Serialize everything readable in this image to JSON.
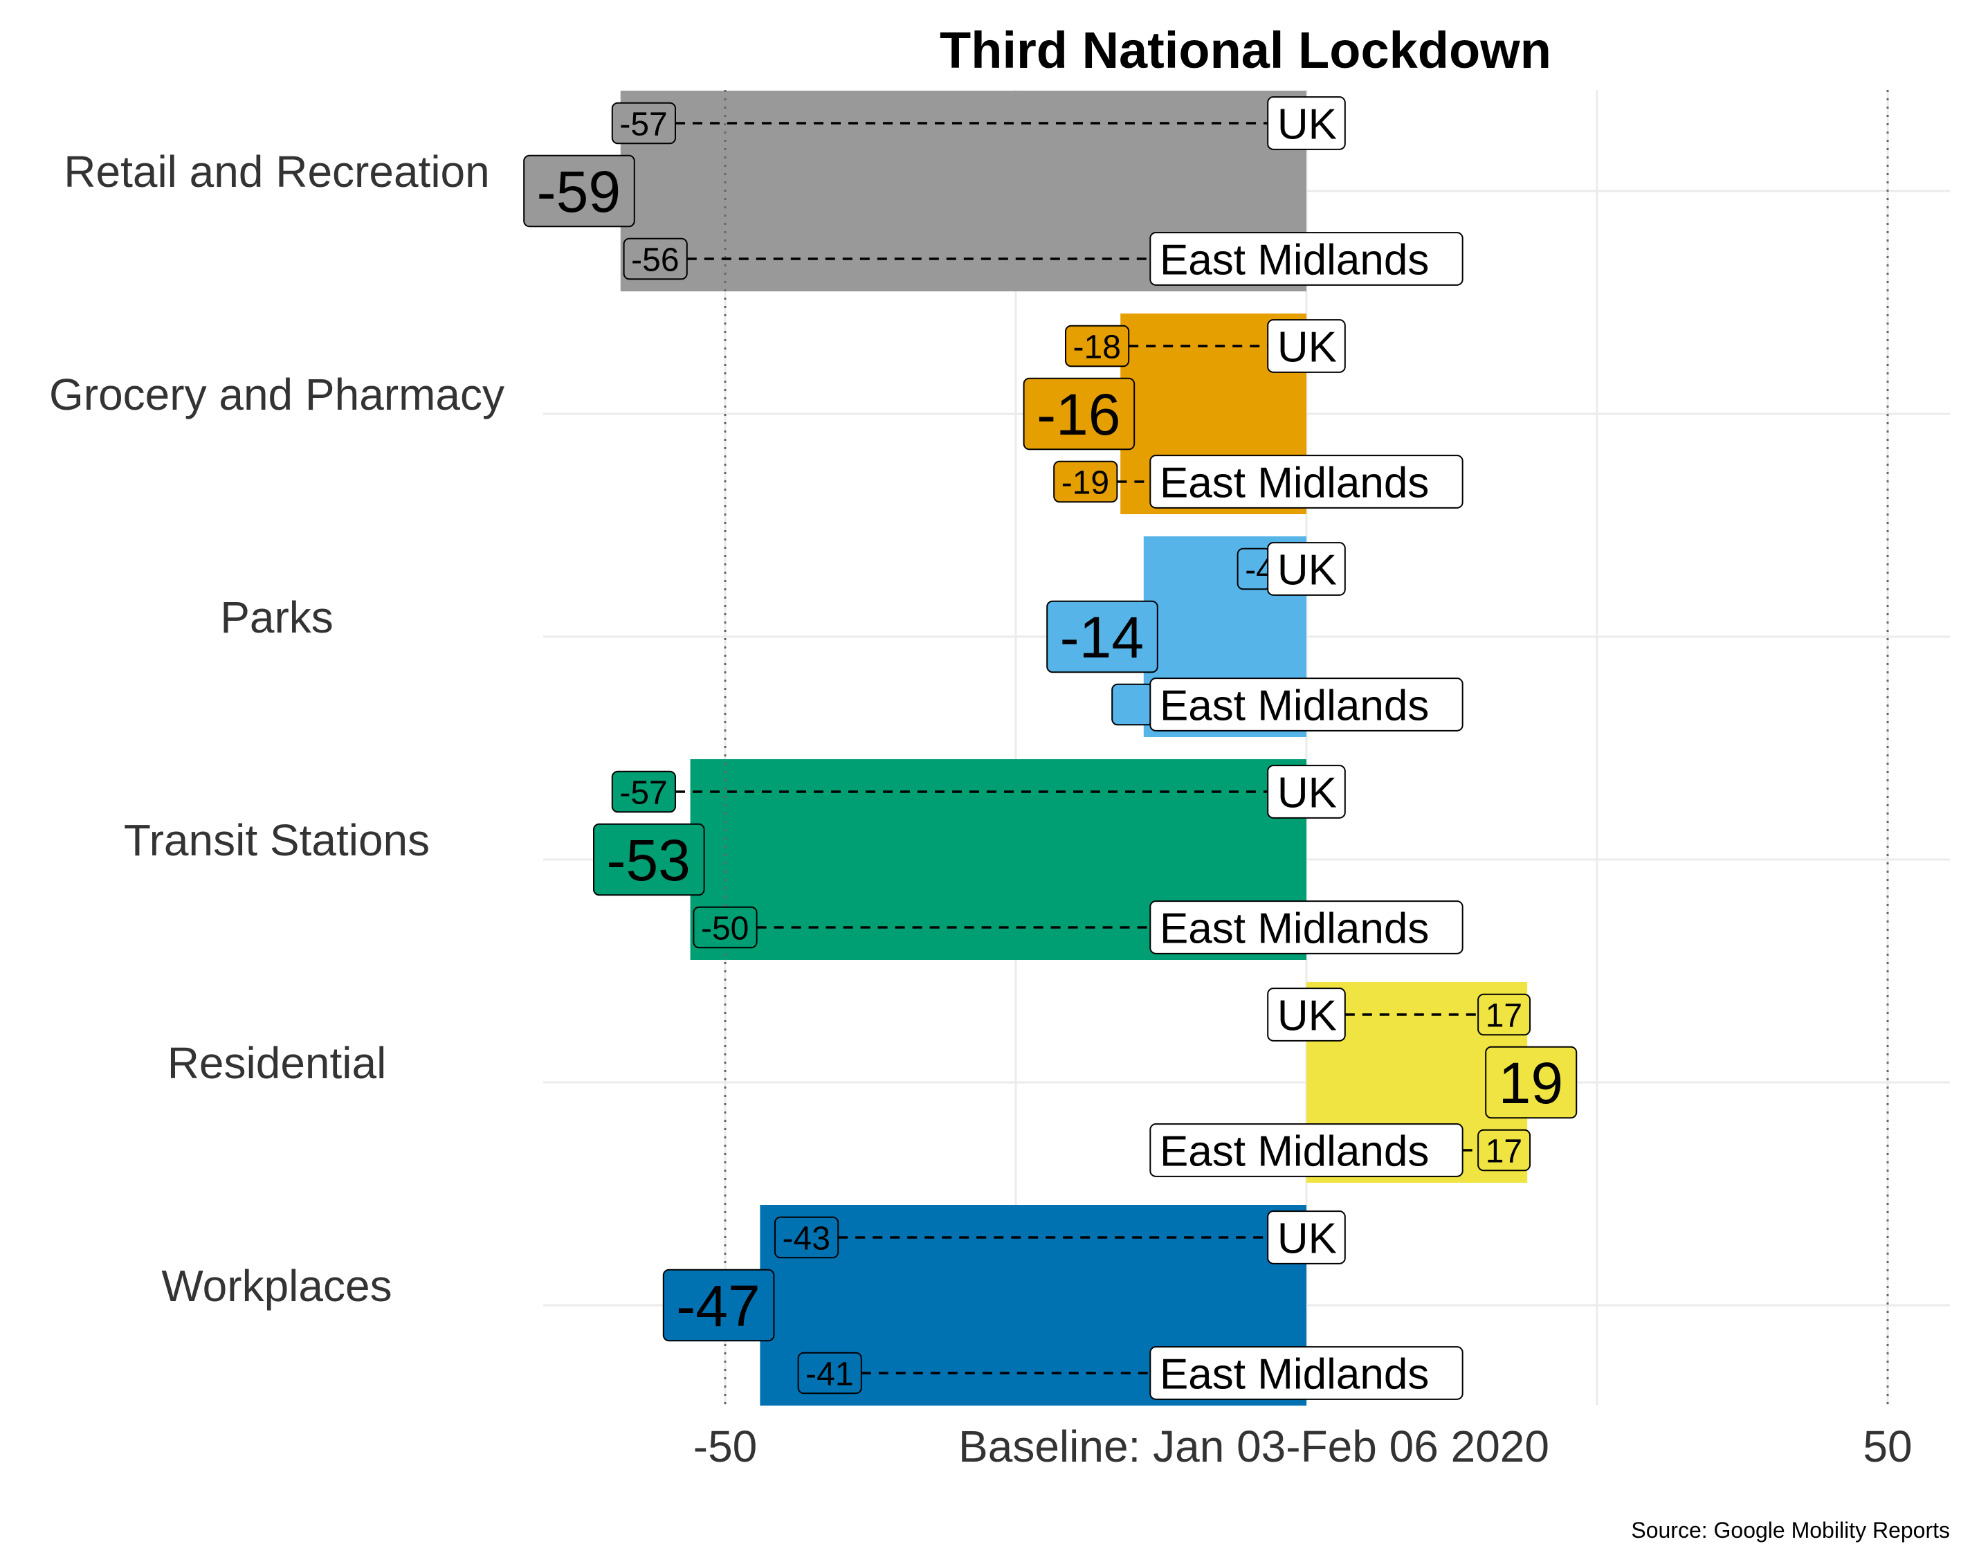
{
  "chart_data": {
    "type": "bar",
    "title": "Third National Lockdown",
    "source": "Source: Google Mobility Reports",
    "categories": [
      "Retail and Recreation",
      "Grocery and Pharmacy",
      "Parks",
      "Transit Stations",
      "Residential",
      "Workplaces"
    ],
    "values": [
      -59,
      -16,
      -14,
      -53,
      19,
      -47
    ],
    "colors": [
      "#999999",
      "#E69F00",
      "#56B4E9",
      "#009E73",
      "#F0E442",
      "#0072B2"
    ],
    "series": [
      {
        "name": "UK",
        "values": [
          -57,
          -18,
          -4,
          -57,
          17,
          -43
        ]
      },
      {
        "name": "East Midlands",
        "values": [
          -56,
          -19,
          -14,
          -50,
          17,
          -41
        ]
      }
    ],
    "xlim": [
      -65,
      55
    ],
    "x_ticks": [
      {
        "value": -50,
        "label": "-50"
      },
      {
        "value": 0,
        "label": "Baseline: Jan 03-Feb 06 2020"
      },
      {
        "value": 50,
        "label": "50"
      }
    ],
    "reference_lines": [
      -50,
      50
    ],
    "grid": true
  }
}
